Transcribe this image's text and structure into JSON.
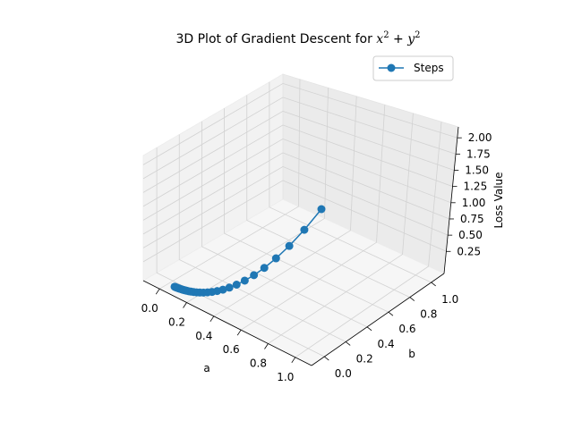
{
  "chart_data": {
    "type": "line",
    "projection": "3d",
    "title": {
      "prefix": "3D Plot of Gradient Descent for ",
      "math_base1": "x",
      "math_exp1": "2",
      "math_op": " + ",
      "math_base2": "y",
      "math_exp2": "2"
    },
    "xlabel": "a",
    "ylabel": "b",
    "zlabel": "Loss Value",
    "xticks": [
      "0.0",
      "0.2",
      "0.4",
      "0.6",
      "0.8",
      "1.0"
    ],
    "yticks": [
      "0.0",
      "0.2",
      "0.4",
      "0.6",
      "0.8",
      "1.0"
    ],
    "zticks": [
      "0.25",
      "0.50",
      "0.75",
      "1.00",
      "1.25",
      "1.50",
      "1.75",
      "2.00"
    ],
    "grid": true,
    "legend_position": "top-right",
    "series": [
      {
        "name": "Steps",
        "color": "#1f77b4",
        "marker": "circle",
        "points": [
          {
            "x": 1.0,
            "y": 1.0,
            "z": 2.0
          },
          {
            "x": 0.9,
            "y": 0.9,
            "z": 1.62
          },
          {
            "x": 0.81,
            "y": 0.81,
            "z": 1.3122
          },
          {
            "x": 0.729,
            "y": 0.729,
            "z": 1.0629
          },
          {
            "x": 0.6561,
            "y": 0.6561,
            "z": 0.861
          },
          {
            "x": 0.5905,
            "y": 0.5905,
            "z": 0.6974
          },
          {
            "x": 0.5314,
            "y": 0.5314,
            "z": 0.5649
          },
          {
            "x": 0.4783,
            "y": 0.4783,
            "z": 0.4576
          },
          {
            "x": 0.4305,
            "y": 0.4305,
            "z": 0.3706
          },
          {
            "x": 0.3874,
            "y": 0.3874,
            "z": 0.3002
          },
          {
            "x": 0.3487,
            "y": 0.3487,
            "z": 0.2432
          },
          {
            "x": 0.3138,
            "y": 0.3138,
            "z": 0.1969
          },
          {
            "x": 0.2824,
            "y": 0.2824,
            "z": 0.1595
          },
          {
            "x": 0.2542,
            "y": 0.2542,
            "z": 0.1292
          },
          {
            "x": 0.2288,
            "y": 0.2288,
            "z": 0.1047
          },
          {
            "x": 0.2059,
            "y": 0.2059,
            "z": 0.0848
          },
          {
            "x": 0.1853,
            "y": 0.1853,
            "z": 0.0687
          },
          {
            "x": 0.1668,
            "y": 0.1668,
            "z": 0.0556
          },
          {
            "x": 0.1501,
            "y": 0.1501,
            "z": 0.0451
          },
          {
            "x": 0.1351,
            "y": 0.1351,
            "z": 0.0365
          },
          {
            "x": 0.1216,
            "y": 0.1216,
            "z": 0.0296
          },
          {
            "x": 0.1094,
            "y": 0.1094,
            "z": 0.0239
          },
          {
            "x": 0.0985,
            "y": 0.0985,
            "z": 0.0194
          },
          {
            "x": 0.0886,
            "y": 0.0886,
            "z": 0.0157
          },
          {
            "x": 0.0798,
            "y": 0.0798,
            "z": 0.0127
          },
          {
            "x": 0.0718,
            "y": 0.0718,
            "z": 0.0103
          },
          {
            "x": 0.0646,
            "y": 0.0646,
            "z": 0.0083
          },
          {
            "x": 0.0581,
            "y": 0.0581,
            "z": 0.0068
          },
          {
            "x": 0.0523,
            "y": 0.0523,
            "z": 0.0055
          },
          {
            "x": 0.0471,
            "y": 0.0471,
            "z": 0.0044
          }
        ]
      }
    ]
  }
}
